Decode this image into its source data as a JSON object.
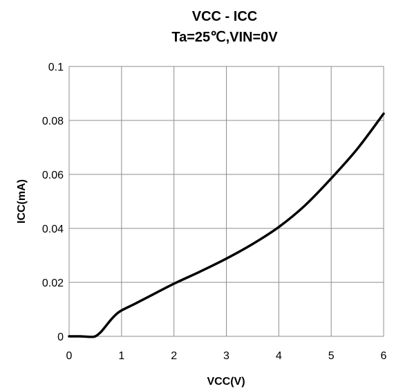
{
  "chart_data": {
    "type": "line",
    "title": "VCC - ICC",
    "subtitle": "Ta=25℃,VIN=0V",
    "xlabel": "VCC(V)",
    "ylabel": "ICC(mA)",
    "xlim": [
      0,
      6
    ],
    "ylim": [
      0,
      0.1
    ],
    "x_ticks": [
      "0",
      "1",
      "2",
      "3",
      "4",
      "5",
      "6"
    ],
    "y_ticks": [
      "0",
      "0.02",
      "0.04",
      "0.06",
      "0.08",
      "0.1"
    ],
    "grid": true,
    "series": [
      {
        "color": "#000000",
        "x": [
          0,
          0.2,
          0.4,
          0.5,
          0.6,
          0.7,
          0.8,
          0.9,
          1.0,
          1.25,
          1.5,
          2.0,
          2.5,
          3.0,
          3.5,
          4.0,
          4.5,
          5.0,
          5.5,
          6.0
        ],
        "y": [
          0,
          0,
          -0.0002,
          0.0,
          0.0015,
          0.0038,
          0.0062,
          0.0082,
          0.0096,
          0.012,
          0.0145,
          0.0195,
          0.024,
          0.0288,
          0.0342,
          0.0405,
          0.0485,
          0.0585,
          0.0695,
          0.0825
        ]
      }
    ]
  }
}
